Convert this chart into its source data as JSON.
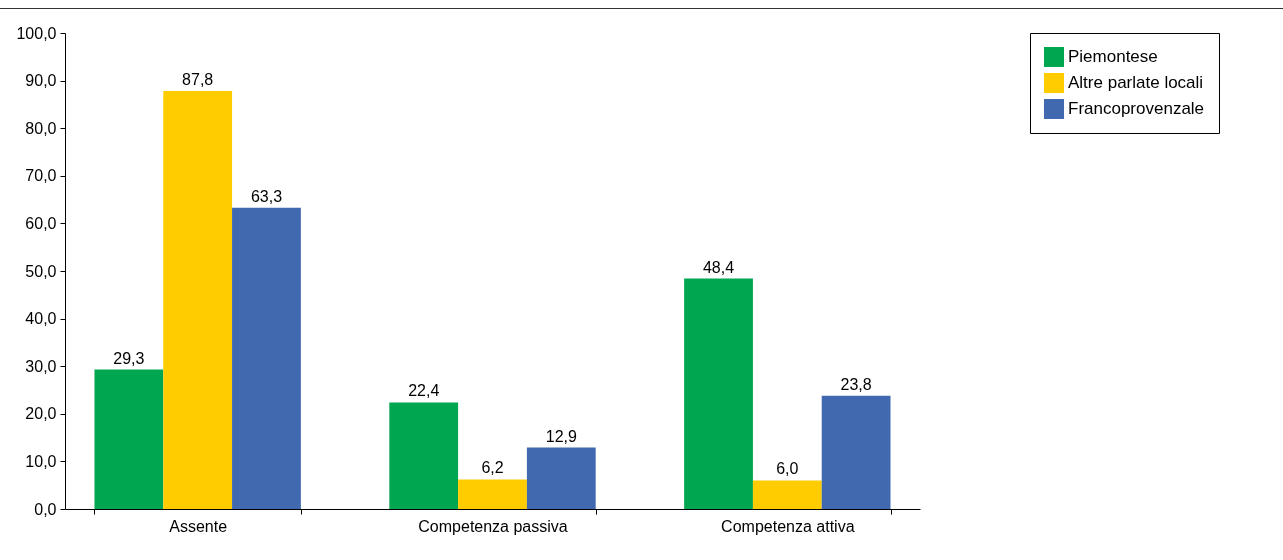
{
  "chart_data": {
    "type": "bar",
    "categories": [
      "Assente",
      "Competenza passiva",
      "Competenza attiva"
    ],
    "series": [
      {
        "name": "Piemontese",
        "color": "#00a650",
        "values": [
          29.3,
          22.4,
          48.4
        ],
        "value_labels": [
          "29,3",
          "22,4",
          "48,4"
        ]
      },
      {
        "name": "Altre parlate locali",
        "color": "#ffcc00",
        "values": [
          87.8,
          6.2,
          6.0
        ],
        "value_labels": [
          "87,8",
          "6,2",
          "6,0"
        ]
      },
      {
        "name": "Francoprovenzale",
        "color": "#4169b0",
        "values": [
          63.3,
          12.9,
          23.8
        ],
        "value_labels": [
          "63,3",
          "12,9",
          "23,8"
        ]
      }
    ],
    "ylim": [
      0,
      100
    ],
    "yticks": [
      {
        "value": 0,
        "label": "0,0"
      },
      {
        "value": 10,
        "label": "10,0"
      },
      {
        "value": 20,
        "label": "20,0"
      },
      {
        "value": 30,
        "label": "30,0"
      },
      {
        "value": 40,
        "label": "40,0"
      },
      {
        "value": 50,
        "label": "50,0"
      },
      {
        "value": 60,
        "label": "60,0"
      },
      {
        "value": 70,
        "label": "70,0"
      },
      {
        "value": 80,
        "label": "80,0"
      },
      {
        "value": 90,
        "label": "90,0"
      },
      {
        "value": 100,
        "label": "100,0"
      }
    ],
    "grid": false,
    "legend": "top right"
  }
}
